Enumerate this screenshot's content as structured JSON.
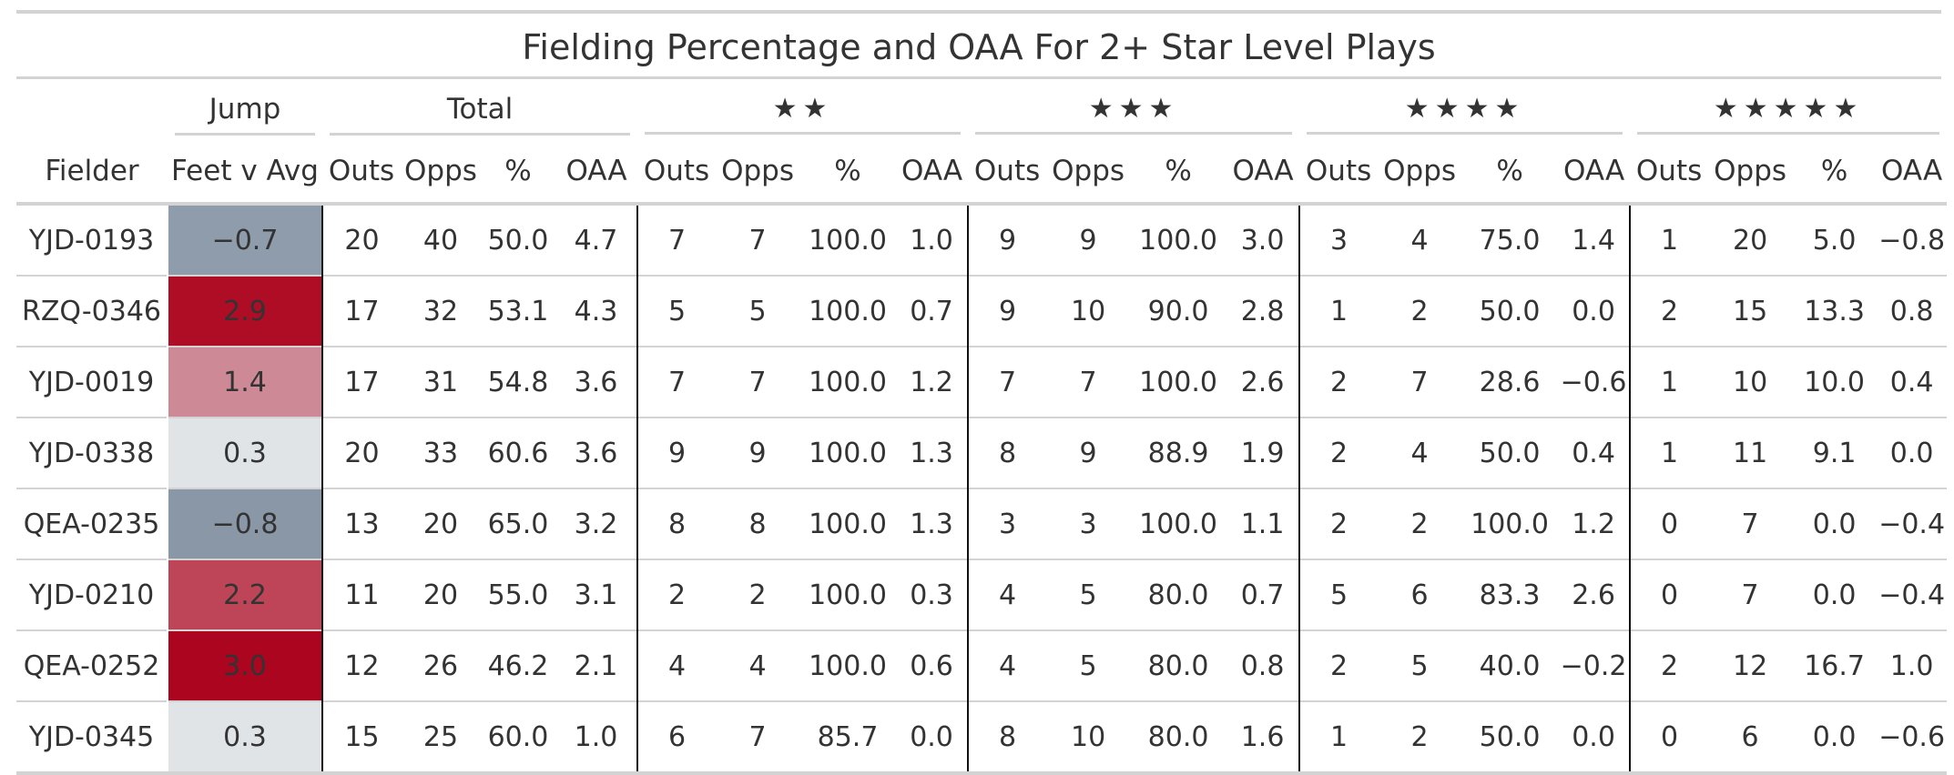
{
  "title": "Fielding Percentage and OAA For 2+ Star Level Plays",
  "spanners": {
    "jump": "Jump",
    "total": "Total",
    "two": "★★",
    "three": "★★★",
    "four": "★★★★",
    "five": "★★★★★"
  },
  "columns": {
    "fielder": "Fielder",
    "jump": "Feet v Avg",
    "outs": "Outs",
    "opps": "Opps",
    "pct": "%",
    "oaa": "OAA"
  },
  "rows": [
    {
      "fielder": "YJD-0193",
      "jump": "−0.7",
      "jump_color": "#8e9cab",
      "total": [
        "20",
        "40",
        "50.0",
        "4.7"
      ],
      "s2": [
        "7",
        "7",
        "100.0",
        "1.0"
      ],
      "s3": [
        "9",
        "9",
        "100.0",
        "3.0"
      ],
      "s4": [
        "3",
        "4",
        "75.0",
        "1.4"
      ],
      "s5": [
        "1",
        "20",
        "5.0",
        "−0.8"
      ]
    },
    {
      "fielder": "RZQ-0346",
      "jump": "2.9",
      "jump_color": "#ae0d25",
      "total": [
        "17",
        "32",
        "53.1",
        "4.3"
      ],
      "s2": [
        "5",
        "5",
        "100.0",
        "0.7"
      ],
      "s3": [
        "9",
        "10",
        "90.0",
        "2.8"
      ],
      "s4": [
        "1",
        "2",
        "50.0",
        "0.0"
      ],
      "s5": [
        "2",
        "15",
        "13.3",
        "0.8"
      ]
    },
    {
      "fielder": "YJD-0019",
      "jump": "1.4",
      "jump_color": "#cd8a96",
      "total": [
        "17",
        "31",
        "54.8",
        "3.6"
      ],
      "s2": [
        "7",
        "7",
        "100.0",
        "1.2"
      ],
      "s3": [
        "7",
        "7",
        "100.0",
        "2.6"
      ],
      "s4": [
        "2",
        "7",
        "28.6",
        "−0.6"
      ],
      "s5": [
        "1",
        "10",
        "10.0",
        "0.4"
      ]
    },
    {
      "fielder": "YJD-0338",
      "jump": "0.3",
      "jump_color": "#e1e4e7",
      "total": [
        "20",
        "33",
        "60.6",
        "3.6"
      ],
      "s2": [
        "9",
        "9",
        "100.0",
        "1.3"
      ],
      "s3": [
        "8",
        "9",
        "88.9",
        "1.9"
      ],
      "s4": [
        "2",
        "4",
        "50.0",
        "0.4"
      ],
      "s5": [
        "1",
        "11",
        "9.1",
        "0.0"
      ]
    },
    {
      "fielder": "QEA-0235",
      "jump": "−0.8",
      "jump_color": "#8997a7",
      "total": [
        "13",
        "20",
        "65.0",
        "3.2"
      ],
      "s2": [
        "8",
        "8",
        "100.0",
        "1.3"
      ],
      "s3": [
        "3",
        "3",
        "100.0",
        "1.1"
      ],
      "s4": [
        "2",
        "2",
        "100.0",
        "1.2"
      ],
      "s5": [
        "0",
        "7",
        "0.0",
        "−0.4"
      ]
    },
    {
      "fielder": "YJD-0210",
      "jump": "2.2",
      "jump_color": "#bd4557",
      "total": [
        "11",
        "20",
        "55.0",
        "3.1"
      ],
      "s2": [
        "2",
        "2",
        "100.0",
        "0.3"
      ],
      "s3": [
        "4",
        "5",
        "80.0",
        "0.7"
      ],
      "s4": [
        "5",
        "6",
        "83.3",
        "2.6"
      ],
      "s5": [
        "0",
        "7",
        "0.0",
        "−0.4"
      ]
    },
    {
      "fielder": "QEA-0252",
      "jump": "3.0",
      "jump_color": "#ac0520",
      "total": [
        "12",
        "26",
        "46.2",
        "2.1"
      ],
      "s2": [
        "4",
        "4",
        "100.0",
        "0.6"
      ],
      "s3": [
        "4",
        "5",
        "80.0",
        "0.8"
      ],
      "s4": [
        "2",
        "5",
        "40.0",
        "−0.2"
      ],
      "s5": [
        "2",
        "12",
        "16.7",
        "1.0"
      ]
    },
    {
      "fielder": "YJD-0345",
      "jump": "0.3",
      "jump_color": "#e1e4e7",
      "total": [
        "15",
        "25",
        "60.0",
        "1.0"
      ],
      "s2": [
        "6",
        "7",
        "85.7",
        "0.0"
      ],
      "s3": [
        "8",
        "10",
        "80.0",
        "1.6"
      ],
      "s4": [
        "1",
        "2",
        "50.0",
        "0.0"
      ],
      "s5": [
        "0",
        "6",
        "0.0",
        "−0.6"
      ]
    }
  ]
}
